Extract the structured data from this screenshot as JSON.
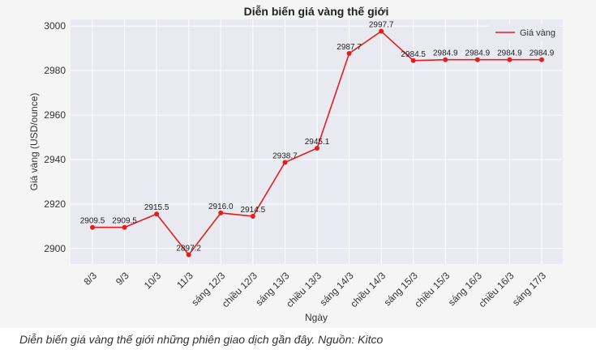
{
  "caption": "Diễn biến giá vàng thế giới những phiên giao dịch gần đây. Nguồn: Kitco",
  "chart_data": {
    "type": "line",
    "title": "Diễn biến giá vàng thế giới",
    "xlabel": "Ngày",
    "ylabel": "Giá vàng (USD/ounce)",
    "ylim": [
      2893,
      3003
    ],
    "yticks": [
      2900,
      2920,
      2940,
      2960,
      2980,
      3000
    ],
    "grid": true,
    "legend_position": "top-right",
    "categories": [
      "8/3",
      "9/3",
      "10/3",
      "11/3",
      "sáng 12/3",
      "chiều 12/3",
      "sáng 13/3",
      "chiều 13/3",
      "sáng 14/3",
      "chiều 14/3",
      "sáng 15/3",
      "chiều 15/3",
      "sáng 16/3",
      "chiều 16/3",
      "sáng 17/3"
    ],
    "series": [
      {
        "name": "Giá vàng",
        "color": "#e0201b",
        "values": [
          2909.5,
          2909.5,
          2915.5,
          2897.2,
          2916.0,
          2914.5,
          2938.7,
          2945.1,
          2987.7,
          2997.7,
          2984.5,
          2984.9,
          2984.9,
          2984.9,
          2984.9
        ],
        "labels": [
          "2909.5",
          "2909.5",
          "2915.5",
          "2897.2",
          "2916.0",
          "2914.5",
          "2938.7",
          "2945.1",
          "2987.7",
          "2997.7",
          "2984.5",
          "2984.9",
          "2984.9",
          "2984.9",
          "2984.9"
        ]
      }
    ]
  }
}
